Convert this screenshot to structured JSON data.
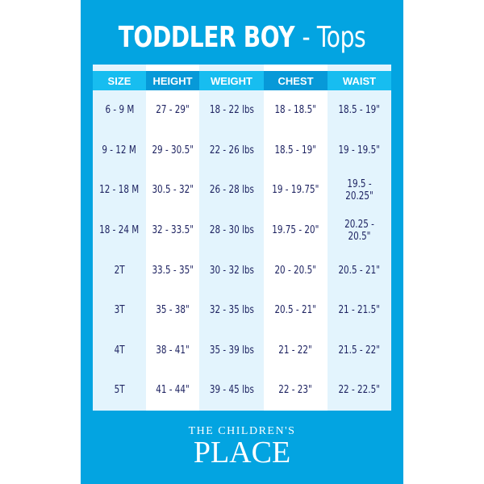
{
  "title": {
    "main": "TODDLER BOY",
    "sub": "- Tops"
  },
  "colors": {
    "background": "#03a4e1",
    "header_light": "#17bdf0",
    "header_dark": "#0799d8",
    "text": "#1f2462"
  },
  "headers": [
    "SIZE",
    "HEIGHT",
    "WEIGHT",
    "CHEST",
    "WAIST"
  ],
  "rows": [
    [
      "6 - 9 M",
      "27 - 29\"",
      "18 - 22 lbs",
      "18 - 18.5\"",
      "18.5 - 19\""
    ],
    [
      "9 - 12 M",
      "29 - 30.5\"",
      "22 - 26 lbs",
      "18.5 - 19\"",
      "19 - 19.5\""
    ],
    [
      "12 - 18 M",
      "30.5 - 32\"",
      "26 - 28 lbs",
      "19 - 19.75\"",
      "19.5 - 20.25\""
    ],
    [
      "18 - 24 M",
      "32 - 33.5\"",
      "28 - 30 lbs",
      "19.75 - 20\"",
      "20.25 - 20.5\""
    ],
    [
      "2T",
      "33.5 - 35\"",
      "30 - 32 lbs",
      "20 - 20.5\"",
      "20.5 - 21\""
    ],
    [
      "3T",
      "35 - 38\"",
      "32 - 35 lbs",
      "20.5 - 21\"",
      "21 - 21.5\""
    ],
    [
      "4T",
      "38 - 41\"",
      "35 - 39 lbs",
      "21 - 22\"",
      "21.5 - 22\""
    ],
    [
      "5T",
      "41 - 44\"",
      "39 - 45 lbs",
      "22 - 23\"",
      "22 - 22.5\""
    ]
  ],
  "logo": {
    "line1": "THE CHILDREN'S",
    "line2": "PLACE"
  }
}
